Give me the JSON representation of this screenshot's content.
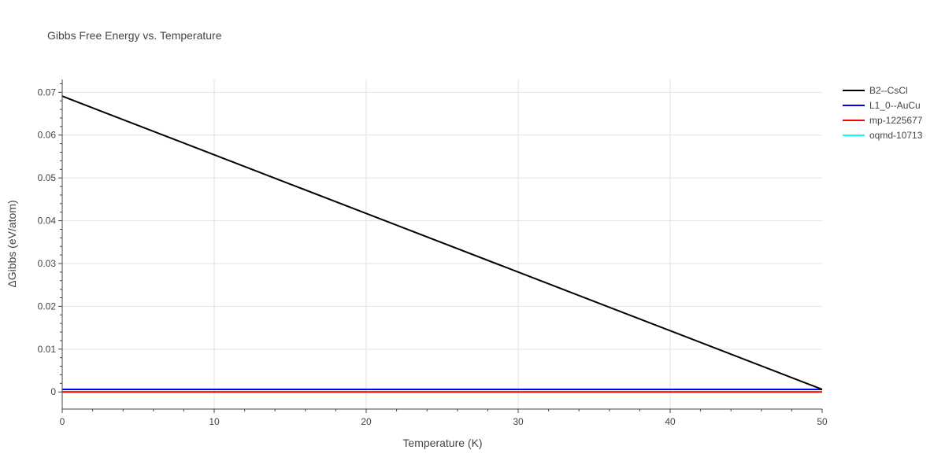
{
  "chart_data": {
    "type": "line",
    "title": "Gibbs Free Energy vs. Temperature",
    "xlabel": "Temperature (K)",
    "ylabel": "ΔGibbs (eV/atom)",
    "xlim": [
      0,
      50
    ],
    "ylim": [
      -0.004,
      0.073
    ],
    "xticks": [
      0,
      10,
      20,
      30,
      40,
      50
    ],
    "yticks": [
      0,
      0.01,
      0.02,
      0.03,
      0.04,
      0.05,
      0.06,
      0.07
    ],
    "ytick_labels": [
      "0",
      "0.01",
      "0.02",
      "0.03",
      "0.04",
      "0.05",
      "0.06",
      "0.07"
    ],
    "grid": true,
    "legend_position": "top-right",
    "series": [
      {
        "name": "B2--CsCl",
        "color": "#000000",
        "x": [
          0,
          50
        ],
        "y": [
          0.0691,
          0.0006
        ]
      },
      {
        "name": "L1_0--AuCu",
        "color": "#0000ff",
        "x": [
          0,
          50
        ],
        "y": [
          0.0006,
          0.0006
        ]
      },
      {
        "name": "mp-1225677",
        "color": "#ff0000",
        "x": [
          0,
          50
        ],
        "y": [
          0.0,
          0.0
        ]
      },
      {
        "name": "oqmd-10713",
        "color": "#00ffff",
        "x": [
          0,
          50
        ],
        "y": [
          0.0,
          0.0
        ]
      }
    ]
  }
}
